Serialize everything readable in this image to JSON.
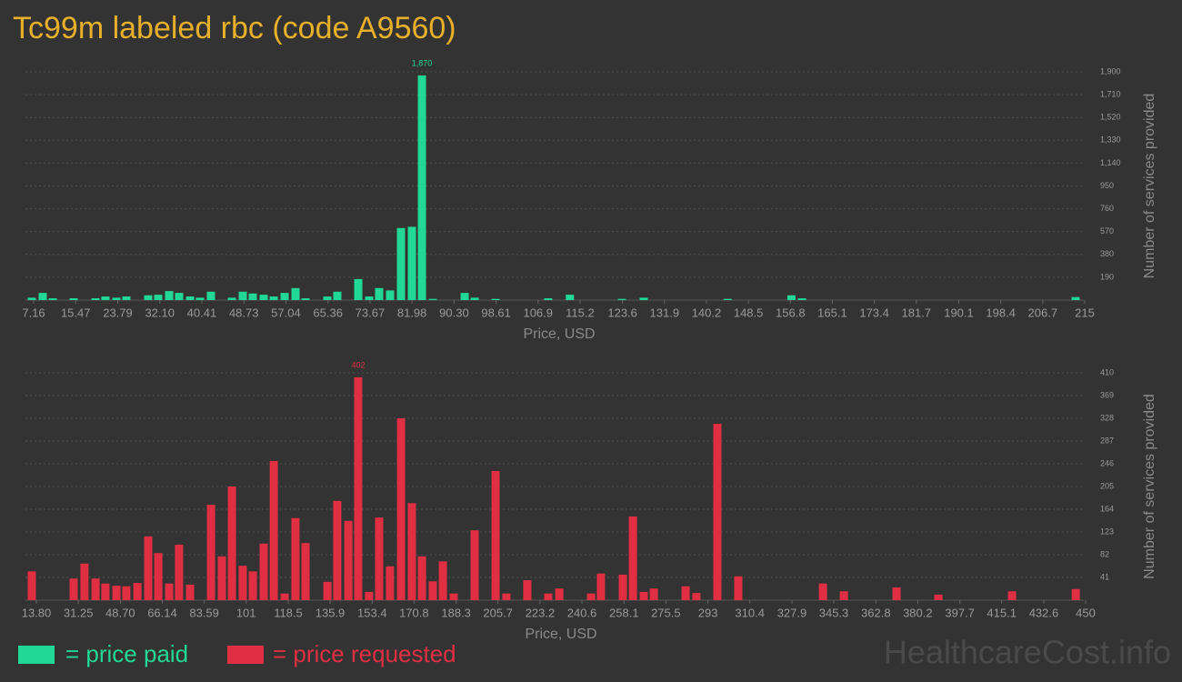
{
  "title": "Tc99m labeled rbc (code A9560)",
  "watermark": "HealthcareCost.info",
  "chart_data": [
    {
      "type": "bar",
      "x_label": "Price, USD",
      "y_label": "Number of services provided",
      "grid": true,
      "xlim": [
        7.16,
        215
      ],
      "ylim": [
        0,
        1900
      ],
      "xticks": [
        7.16,
        15.47,
        23.79,
        {
          "value": 32.1,
          "label": "32.10"
        },
        40.41,
        48.73,
        57.04,
        65.36,
        73.67,
        81.98,
        {
          "value": 90.3,
          "label": "90.30"
        },
        98.61,
        106.9,
        115.2,
        123.6,
        131.9,
        140.2,
        148.5,
        156.8,
        165.1,
        173.4,
        181.7,
        190.1,
        198.4,
        206.7,
        215
      ],
      "yticks": [
        190,
        380,
        570,
        760,
        950,
        {
          "value": 1140,
          "label": "1,140"
        },
        {
          "value": 1330,
          "label": "1,330"
        },
        {
          "value": 1520,
          "label": "1,520"
        },
        {
          "value": 1710,
          "label": "1,710"
        },
        {
          "value": 1900,
          "label": "1,900"
        }
      ],
      "x": [
        6.8,
        8.96,
        10.94,
        15.07,
        19.39,
        21.36,
        23.52,
        25.5,
        29.81,
        31.79,
        33.95,
        35.93,
        38.09,
        40.06,
        42.22,
        46.36,
        48.52,
        50.49,
        52.65,
        54.63,
        56.79,
        58.94,
        60.92,
        65.24,
        67.21,
        71.35,
        73.51,
        75.48,
        77.64,
        79.8,
        81.96,
        83.94,
        86.09,
        92.39,
        94.37,
        98.5,
        108.9,
        113.2,
        123.5,
        127.8,
        144.4,
        157.0,
        159.1,
        213.2
      ],
      "series": [
        {
          "name": "= price paid",
          "color": "#22d896",
          "values": [
            20,
            60,
            15,
            15,
            15,
            30,
            20,
            30,
            40,
            45,
            75,
            60,
            30,
            20,
            70,
            20,
            70,
            55,
            45,
            30,
            60,
            100,
            15,
            30,
            70,
            175,
            30,
            100,
            80,
            600,
            610,
            1870,
            10,
            60,
            20,
            10,
            15,
            45,
            10,
            20,
            10,
            40,
            15,
            25
          ],
          "value_labels": [
            null,
            null,
            null,
            null,
            null,
            null,
            null,
            null,
            null,
            null,
            null,
            null,
            null,
            null,
            null,
            null,
            null,
            null,
            null,
            null,
            null,
            null,
            null,
            null,
            null,
            null,
            null,
            null,
            null,
            null,
            null,
            "1,870",
            null,
            null,
            null,
            null,
            null,
            null,
            null,
            null,
            null,
            null,
            null,
            null
          ]
        }
      ]
    },
    {
      "type": "bar",
      "x_label": "Price, USD",
      "y_label": "Number of services provided",
      "grid": true,
      "xlim": [
        13.8,
        450
      ],
      "ylim": [
        0,
        410
      ],
      "xticks": [
        {
          "value": 13.8,
          "label": "13.80"
        },
        31.25,
        {
          "value": 48.7,
          "label": "48.70"
        },
        66.14,
        83.59,
        101,
        118.5,
        135.9,
        153.4,
        170.8,
        188.3,
        205.7,
        223.2,
        240.6,
        258.1,
        275.5,
        293,
        310.4,
        327.9,
        345.3,
        362.8,
        380.2,
        397.7,
        415.1,
        432.6,
        450
      ],
      "yticks": [
        41,
        82,
        123,
        164,
        205,
        246,
        287,
        328,
        369,
        410
      ],
      "x": [
        11.9,
        29.3,
        33.8,
        38.4,
        42.5,
        47.1,
        51.2,
        55.8,
        60.3,
        64.5,
        69.0,
        73.1,
        77.7,
        86.4,
        90.9,
        95.1,
        99.6,
        103.8,
        108.3,
        112.5,
        117.0,
        121.5,
        125.7,
        134.8,
        138.9,
        143.5,
        147.6,
        152.1,
        156.3,
        160.8,
        165.4,
        169.9,
        174.1,
        178.6,
        182.8,
        187.3,
        196.0,
        204.7,
        209.2,
        217.9,
        226.6,
        231.2,
        244.4,
        248.5,
        257.6,
        261.8,
        266.3,
        270.5,
        283.7,
        288.2,
        296.9,
        305.6,
        340.8,
        349.5,
        371.4,
        388.8,
        419.4,
        445.9
      ],
      "series": [
        {
          "name": "= price requested",
          "color": "#e02f42",
          "values": [
            52,
            39,
            66,
            39,
            30,
            26,
            25,
            31,
            115,
            85,
            30,
            100,
            28,
            172,
            79,
            205,
            62,
            52,
            102,
            251,
            12,
            148,
            103,
            33,
            179,
            143,
            402,
            15,
            149,
            61,
            328,
            175,
            79,
            34,
            70,
            12,
            126,
            233,
            12,
            36,
            12,
            21,
            12,
            48,
            46,
            151,
            15,
            21,
            25,
            13,
            318,
            43,
            30,
            16,
            23,
            10,
            16,
            20
          ],
          "value_labels": [
            null,
            null,
            null,
            null,
            null,
            null,
            null,
            null,
            null,
            null,
            null,
            null,
            null,
            null,
            null,
            null,
            null,
            null,
            null,
            null,
            null,
            null,
            null,
            null,
            null,
            null,
            "402",
            null,
            null,
            null,
            null,
            null,
            null,
            null,
            null,
            null,
            null,
            null,
            null,
            null,
            null,
            null,
            null,
            null,
            null,
            null,
            null,
            null,
            null,
            null,
            null,
            null,
            null,
            null,
            null,
            null,
            null,
            null
          ]
        }
      ]
    }
  ]
}
